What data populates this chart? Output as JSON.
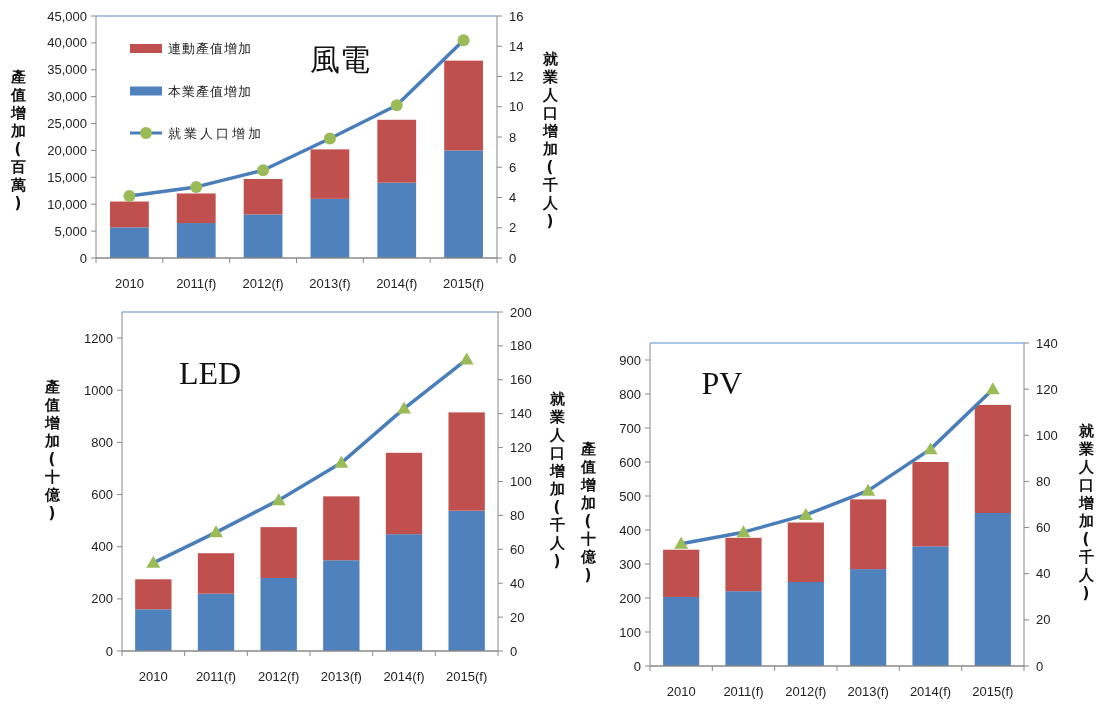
{
  "chart_data": [
    {
      "type": "bar",
      "stacked": true,
      "title": "風電",
      "categories": [
        "2010",
        "2011(f)",
        "2012(f)",
        "2013(f)",
        "2014(f)",
        "2015(f)"
      ],
      "series": [
        {
          "name": "本業產值增加",
          "color": "#4f81bd",
          "values": [
            5700,
            6500,
            8100,
            11000,
            14000,
            20000
          ]
        },
        {
          "name": "連動產值增加",
          "color": "#c0504d",
          "values": [
            4800,
            5500,
            6600,
            9200,
            11700,
            16700
          ]
        },
        {
          "name": "就業人口增加",
          "type": "line",
          "axis": "y2",
          "color": "#4a7ebb",
          "values": [
            4.1,
            4.7,
            5.8,
            7.9,
            10.1,
            14.4
          ]
        }
      ],
      "ylabel": "產值增加(百萬)",
      "y2label": "就業人口增加(千人)",
      "ylim": [
        0,
        45000
      ],
      "yticks": [
        0,
        {
          "value": 5000,
          "label": "5,000"
        },
        {
          "value": 10000,
          "label": "10,000"
        },
        {
          "value": 15000,
          "label": "15,000"
        },
        {
          "value": 20000,
          "label": "20,000"
        },
        {
          "value": 25000,
          "label": "25,000"
        },
        {
          "value": 30000,
          "label": "30,000"
        },
        {
          "value": 35000,
          "label": "35,000"
        },
        {
          "value": 40000,
          "label": "40,000"
        },
        {
          "value": 45000,
          "label": "45,000"
        }
      ],
      "y2lim": [
        0,
        16
      ],
      "y2ticks": [
        0,
        2,
        4,
        6,
        8,
        10,
        12,
        14,
        16
      ],
      "legend": "top left",
      "marker": "circle",
      "grid": false
    },
    {
      "type": "bar",
      "stacked": true,
      "title": "LED",
      "categories": [
        "2010",
        "2011(f)",
        "2012(f)",
        "2013(f)",
        "2014(f)",
        "2015(f)"
      ],
      "series": [
        {
          "color": "#4f81bd",
          "values": [
            160,
            220,
            280,
            348,
            448,
            538
          ]
        },
        {
          "color": "#c0504d",
          "values": [
            115,
            155,
            195,
            245,
            312,
            377
          ]
        },
        {
          "type": "line",
          "axis": "y2",
          "color": "#4a7ebb",
          "values": [
            52,
            70,
            89,
            111,
            143,
            172
          ]
        }
      ],
      "ylabel": "產值增加(十億)",
      "y2label": "就業人口增加(千人)",
      "ylim": [
        0,
        1300
      ],
      "yticks": [
        0,
        200,
        400,
        600,
        800,
        1000,
        1200
      ],
      "y2lim": [
        0,
        200
      ],
      "y2ticks": [
        0,
        20,
        40,
        60,
        80,
        100,
        120,
        140,
        160,
        180,
        200
      ],
      "legend": false,
      "marker": "triangle",
      "grid": false
    },
    {
      "type": "bar",
      "stacked": true,
      "title": "PV",
      "categories": [
        "2010",
        "2011(f)",
        "2012(f)",
        "2013(f)",
        "2014(f)",
        "2015(f)"
      ],
      "series": [
        {
          "color": "#4f81bd",
          "values": [
            203,
            220,
            247,
            285,
            352,
            450
          ]
        },
        {
          "color": "#c0504d",
          "values": [
            139,
            157,
            175,
            205,
            248,
            318
          ]
        },
        {
          "type": "line",
          "axis": "y2",
          "color": "#4a7ebb",
          "values": [
            53,
            58,
            65.5,
            76,
            94,
            120
          ]
        }
      ],
      "ylabel": "產值增加(十億)",
      "y2label": "就業人口增加(千人)",
      "ylim": [
        0,
        950
      ],
      "yticks": [
        0,
        100,
        200,
        300,
        400,
        500,
        600,
        700,
        800,
        900
      ],
      "y2lim": [
        0,
        140
      ],
      "y2ticks": [
        0,
        20,
        40,
        60,
        80,
        100,
        120,
        140
      ],
      "legend": false,
      "marker": "triangle",
      "grid": false
    }
  ]
}
